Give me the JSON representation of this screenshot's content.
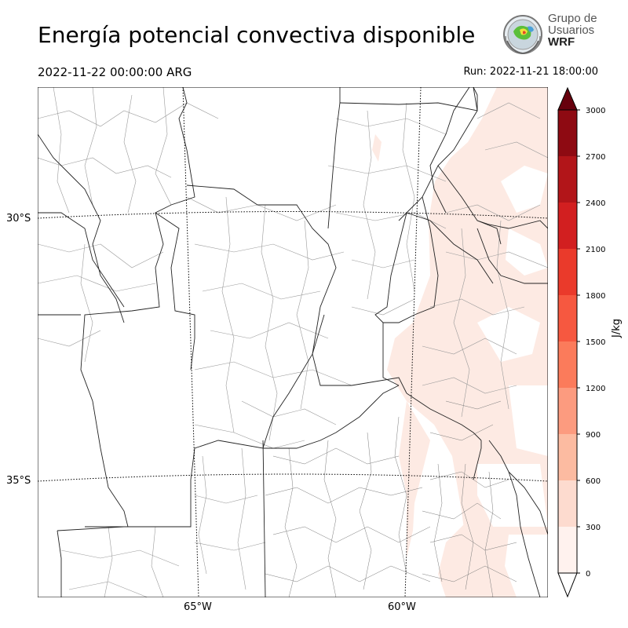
{
  "header": {
    "title": "Energía potencial convectiva disponible",
    "valid_time": "2022-11-22 00:00:00 ARG",
    "run_time": "Run: 2022-11-21 18:00:00"
  },
  "logo": {
    "line1": "Grupo de",
    "line2": "Usuarios",
    "line3": "WRF"
  },
  "map": {
    "lat_labels": [
      "30°S",
      "35°S"
    ],
    "lon_labels": [
      "65°W",
      "60°W"
    ],
    "cape_shading_color": "#fdeae3"
  },
  "colorbar": {
    "units": "J/kg",
    "ticks": [
      "0",
      "300",
      "600",
      "900",
      "1200",
      "1500",
      "1800",
      "2100",
      "2400",
      "2700",
      "3000"
    ],
    "colors": [
      "#fff2ee",
      "#fddbcf",
      "#fcbba1",
      "#fc9b7f",
      "#fb7b5b",
      "#f65840",
      "#ea3a2b",
      "#d21f20",
      "#b21519",
      "#8e0a12"
    ],
    "extend_high_color": "#67000d"
  }
}
